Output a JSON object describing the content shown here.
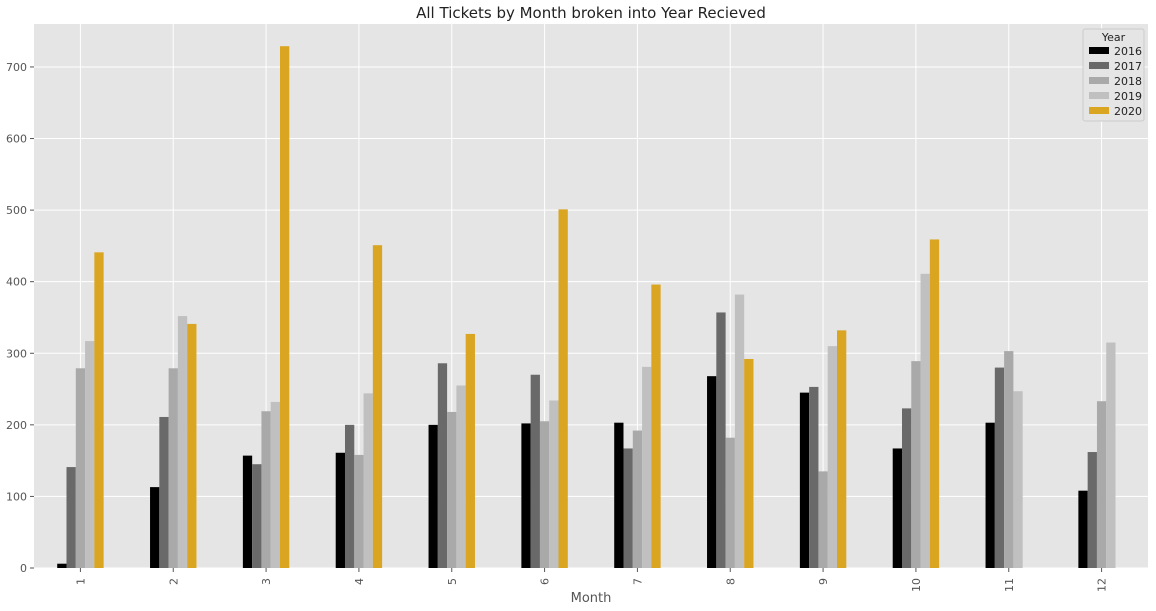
{
  "chart_data": {
    "type": "bar",
    "title": "All Tickets by Month broken into Year Recieved",
    "xlabel": "Month",
    "ylabel": "",
    "ylim": [
      0,
      760
    ],
    "yticks": [
      0,
      100,
      200,
      300,
      400,
      500,
      600,
      700
    ],
    "categories": [
      "1",
      "2",
      "3",
      "4",
      "5",
      "6",
      "7",
      "8",
      "9",
      "10",
      "11",
      "12"
    ],
    "grid": true,
    "legend": {
      "title": "Year",
      "placement": "top-right"
    },
    "series": [
      {
        "name": "2016",
        "color": "#000000",
        "values": [
          6,
          113,
          157,
          161,
          200,
          202,
          203,
          268,
          245,
          167,
          203,
          108
        ]
      },
      {
        "name": "2017",
        "color": "#696969",
        "values": [
          141,
          211,
          145,
          200,
          286,
          270,
          167,
          357,
          253,
          223,
          280,
          162
        ]
      },
      {
        "name": "2018",
        "color": "#a9a9a9",
        "values": [
          279,
          279,
          219,
          158,
          218,
          205,
          192,
          182,
          135,
          289,
          303,
          233
        ]
      },
      {
        "name": "2019",
        "color": "#c0c0c0",
        "values": [
          317,
          352,
          232,
          244,
          255,
          234,
          281,
          382,
          310,
          411,
          247,
          315
        ]
      },
      {
        "name": "2020",
        "color": "#daa520",
        "values": [
          441,
          341,
          729,
          451,
          327,
          501,
          396,
          292,
          332,
          459,
          null,
          null
        ]
      }
    ]
  }
}
